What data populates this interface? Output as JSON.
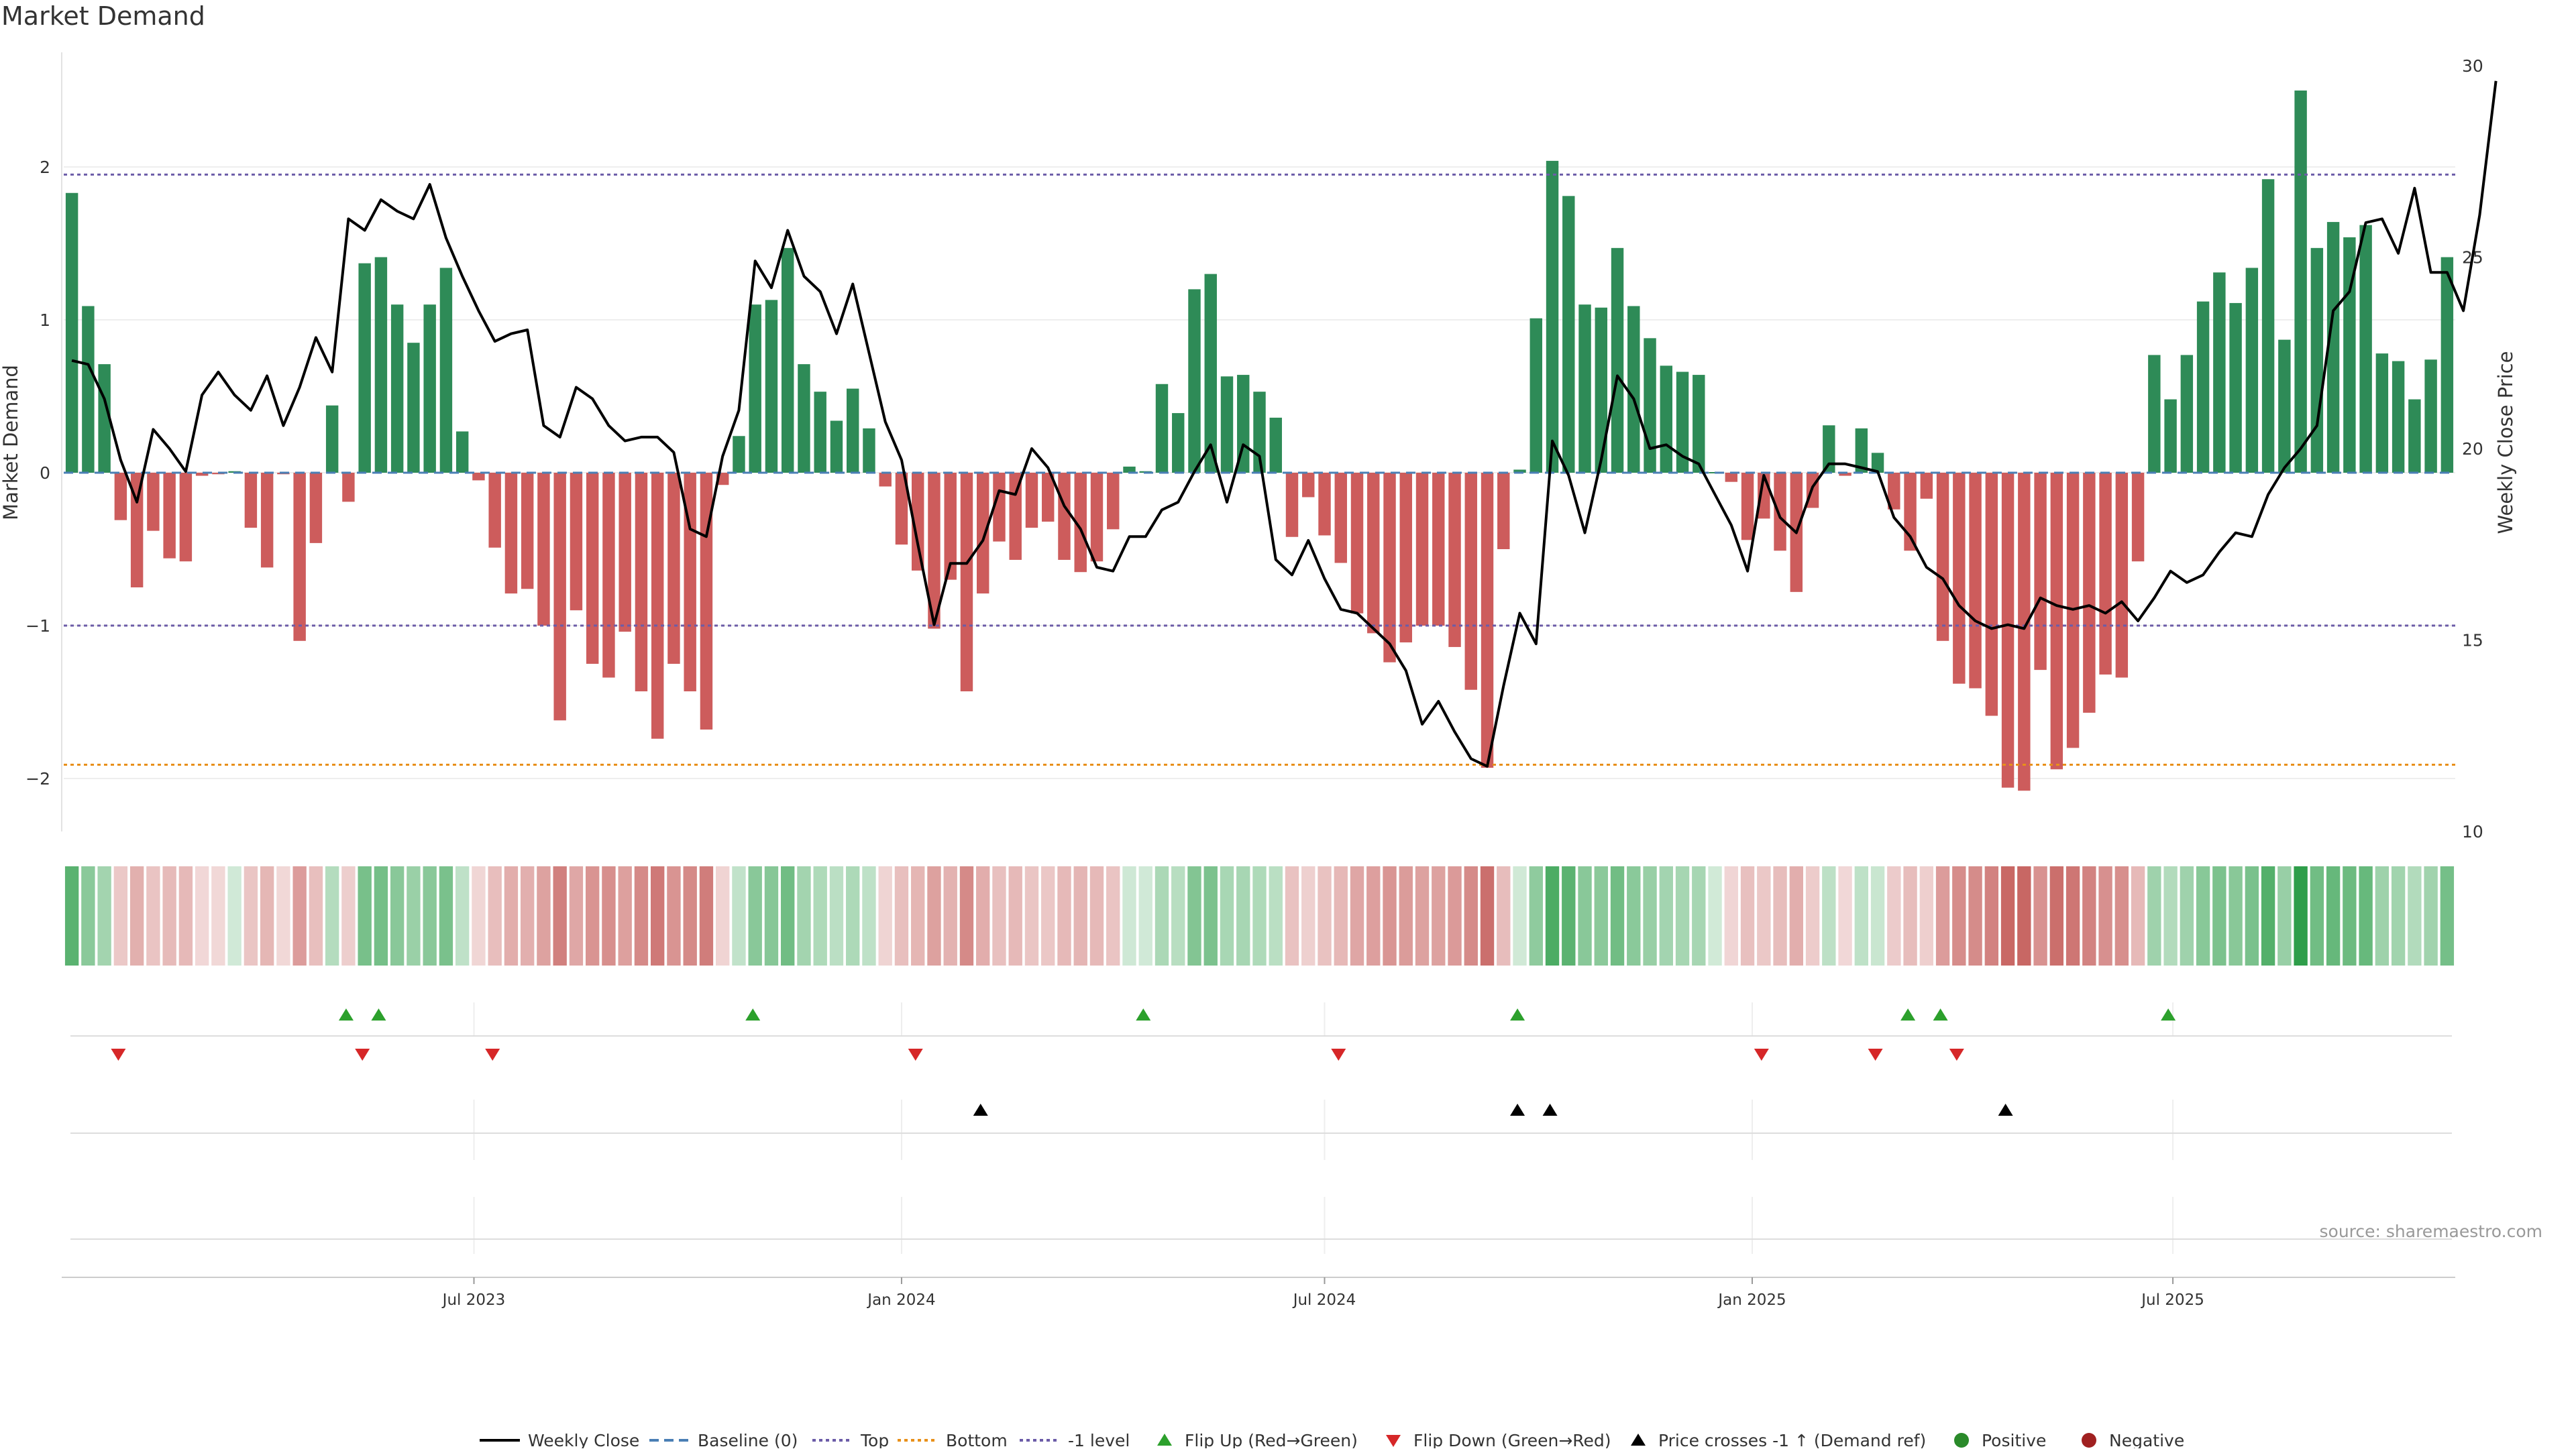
{
  "page": {
    "title": "Market Demand",
    "source": "source: sharemaestro.com"
  },
  "colors": {
    "positive_bar": "#2e8b57",
    "negative_bar": "#cd5c5c",
    "price_line": "#000000",
    "top_line": "#6c5ca8",
    "bottom_line": "#e8901a",
    "minus1_line": "#6c5ca8",
    "baseline": "#4a7fb5",
    "flip_up": "#2ca02c",
    "flip_down": "#d62728",
    "price_cross": "#000000",
    "positive_dot": "#2a8a2a",
    "negative_dot": "#a02020"
  },
  "chart_data": {
    "type": "bar",
    "ylabel": "Market Demand",
    "y2label": "Weekly Close Price",
    "ylim": [
      -2.35,
      2.75
    ],
    "y2lim": [
      10,
      30
    ],
    "yticks": [
      {
        "v": 2,
        "l": "2"
      },
      {
        "v": 1,
        "l": "1"
      },
      {
        "v": 0,
        "l": "0"
      },
      {
        "v": -1,
        "l": "−1"
      },
      {
        "v": -2,
        "l": "−2"
      }
    ],
    "y2ticks": [
      {
        "v": 30,
        "l": "30"
      },
      {
        "v": 25,
        "l": "25"
      },
      {
        "v": 20,
        "l": "20"
      },
      {
        "v": 15,
        "l": "15"
      },
      {
        "v": 10,
        "l": "10"
      }
    ],
    "reference_lines": {
      "top": 1.95,
      "bottom": -1.91,
      "minus1": -1.0,
      "baseline": 0
    },
    "x_start_date": "2023-01-09",
    "x_end_date": "2025-10-27",
    "xticks": [
      {
        "date": "2023-07-01",
        "label": "Jul 2023"
      },
      {
        "date": "2024-01-01",
        "label": "Jan 2024"
      },
      {
        "date": "2024-07-01",
        "label": "Jul 2024"
      },
      {
        "date": "2025-01-01",
        "label": "Jan 2025"
      },
      {
        "date": "2025-07-01",
        "label": "Jul 2025"
      }
    ],
    "demand": [
      1.83,
      1.09,
      0.71,
      -0.31,
      -0.75,
      -0.38,
      -0.56,
      -0.58,
      -0.02,
      -0.01,
      0.01,
      -0.36,
      -0.62,
      -0.01,
      -1.1,
      -0.46,
      0.44,
      -0.19,
      1.37,
      1.41,
      1.1,
      0.85,
      1.1,
      1.34,
      0.27,
      -0.05,
      -0.49,
      -0.79,
      -0.76,
      -1.0,
      -1.62,
      -0.9,
      -1.25,
      -1.34,
      -1.04,
      -1.43,
      -1.74,
      -1.25,
      -1.43,
      -1.68,
      -0.08,
      0.24,
      1.1,
      1.13,
      1.47,
      0.71,
      0.53,
      0.34,
      0.55,
      0.29,
      -0.09,
      -0.47,
      -0.64,
      -1.02,
      -0.7,
      -1.43,
      -0.79,
      -0.45,
      -0.57,
      -0.36,
      -0.32,
      -0.57,
      -0.65,
      -0.58,
      -0.37,
      0.04,
      0.01,
      0.58,
      0.39,
      1.2,
      1.3,
      0.63,
      0.64,
      0.53,
      0.36,
      -0.42,
      -0.16,
      -0.41,
      -0.59,
      -0.92,
      -1.05,
      -1.24,
      -1.11,
      -1.0,
      -1.0,
      -1.14,
      -1.42,
      -1.93,
      -0.5,
      0.02,
      1.01,
      2.04,
      1.81,
      1.1,
      1.08,
      1.47,
      1.09,
      0.88,
      0.7,
      0.66,
      0.64,
      0.0,
      -0.06,
      -0.44,
      -0.3,
      -0.51,
      -0.78,
      -0.23,
      0.31,
      -0.02,
      0.29,
      0.13,
      -0.24,
      -0.51,
      -0.17,
      -1.1,
      -1.38,
      -1.41,
      -1.59,
      -2.06,
      -2.08,
      -1.29,
      -1.94,
      -1.8,
      -1.57,
      -1.32,
      -1.34,
      -0.58,
      0.77,
      0.48,
      0.77,
      1.12,
      1.31,
      1.11,
      1.34,
      1.92,
      0.87,
      2.5,
      1.47,
      1.64,
      1.54,
      1.62,
      0.78,
      0.73,
      0.48,
      0.74,
      1.41
    ],
    "price": [
      22.3,
      22.2,
      21.3,
      19.7,
      18.6,
      20.5,
      20.0,
      19.4,
      21.4,
      22.0,
      21.4,
      21.0,
      21.9,
      20.6,
      21.6,
      22.9,
      22.0,
      26.0,
      25.7,
      26.5,
      26.2,
      26.0,
      26.9,
      25.5,
      24.5,
      23.6,
      22.8,
      23.0,
      23.1,
      20.6,
      20.3,
      21.6,
      21.3,
      20.6,
      20.2,
      20.3,
      20.3,
      19.9,
      17.9,
      17.7,
      19.8,
      21.0,
      24.9,
      24.2,
      25.7,
      24.5,
      24.1,
      23.0,
      24.3,
      22.5,
      20.7,
      19.7,
      17.5,
      15.4,
      17.0,
      17.0,
      17.6,
      18.9,
      18.8,
      20.0,
      19.5,
      18.5,
      17.9,
      16.9,
      16.8,
      17.7,
      17.7,
      18.4,
      18.6,
      19.4,
      20.1,
      18.6,
      20.1,
      19.8,
      17.1,
      16.7,
      17.6,
      16.6,
      15.8,
      15.7,
      15.3,
      14.9,
      14.2,
      12.8,
      13.4,
      12.6,
      11.9,
      11.7,
      13.8,
      15.7,
      14.9,
      20.2,
      19.3,
      17.8,
      19.7,
      21.9,
      21.3,
      20.0,
      20.1,
      19.8,
      19.6,
      18.8,
      18.0,
      16.8,
      19.3,
      18.2,
      17.8,
      19.0,
      19.6,
      19.6,
      19.5,
      19.4,
      18.2,
      17.7,
      16.9,
      16.6,
      15.9,
      15.5,
      15.3,
      15.4,
      15.3,
      16.1,
      15.9,
      15.8,
      15.9,
      15.7,
      16.0,
      15.5,
      16.1,
      16.8,
      16.5,
      16.7,
      17.3,
      17.8,
      17.7,
      18.8,
      19.5,
      20.0,
      20.6,
      23.6,
      24.1,
      25.9,
      26.0,
      25.1,
      26.8,
      24.6,
      24.6,
      23.6,
      26.1,
      29.6
    ],
    "flip_up_dates": [
      "2023-05-07",
      "2023-05-21",
      "2023-10-29",
      "2024-04-14",
      "2024-09-22",
      "2025-03-09",
      "2025-03-23",
      "2025-06-29"
    ],
    "flip_down_dates": [
      "2023-01-29",
      "2023-05-14",
      "2023-07-09",
      "2024-01-07",
      "2024-07-07",
      "2025-01-05",
      "2025-02-23",
      "2025-03-30"
    ],
    "price_cross_dates": [
      "2024-02-04",
      "2024-09-22",
      "2024-10-06",
      "2025-04-20"
    ],
    "legend_position": "bottom-center",
    "legend": [
      "Weekly Close",
      "Baseline (0)",
      "Top",
      "Bottom",
      "-1 level",
      "Flip Up (Red→Green)",
      "Flip Down (Green→Red)",
      "Price crosses -1 ↑ (Demand ref)",
      "Positive",
      "Negative"
    ]
  }
}
